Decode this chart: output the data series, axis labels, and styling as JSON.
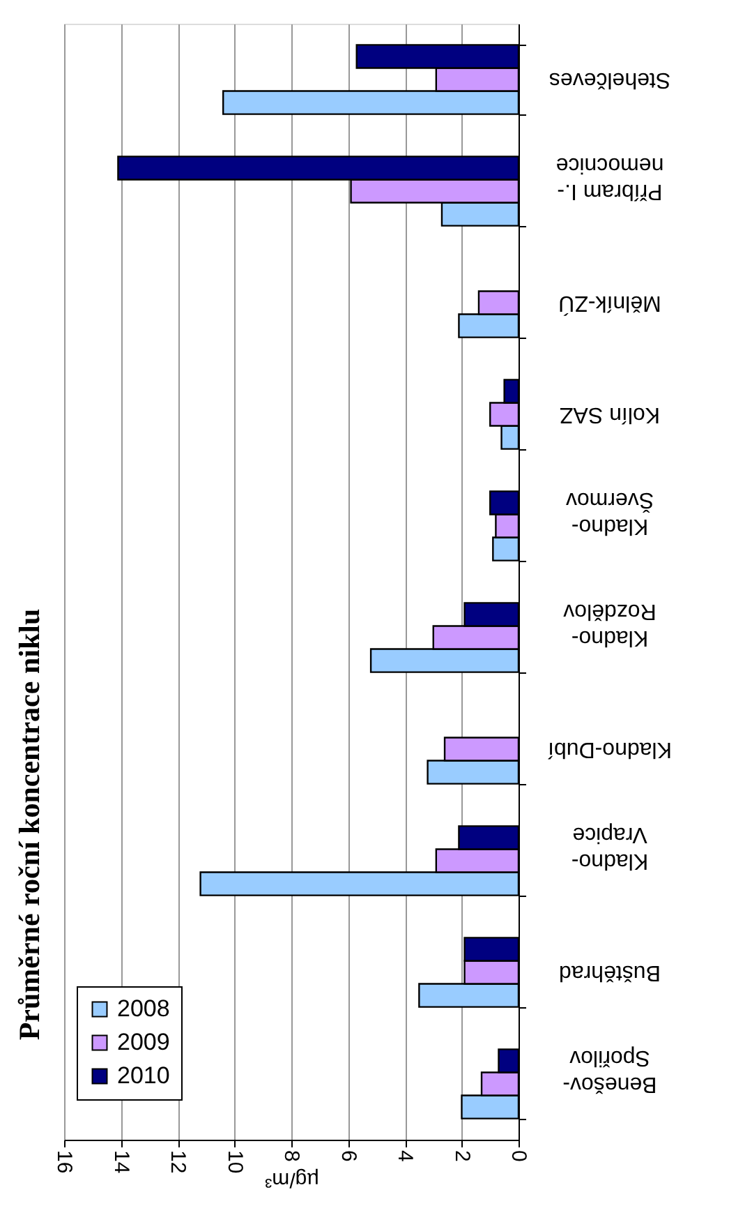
{
  "chart_data": {
    "type": "bar",
    "orientation": "horizontal",
    "title": "Průměrné roční koncentrace niklu",
    "xlabel": "µg/m³",
    "categories": [
      "Stehelčeves",
      "Příbram I.-\nnemocnice",
      "Mělník-ZÚ",
      "Kolín SAZ",
      "Kladno-\nŠvermov",
      "Kladno-\nRozdělov",
      "Kladno-Dubí",
      "Kladno-\nVrapice",
      "Buštěhrad",
      "Benešov-\nSpořilov"
    ],
    "series": [
      {
        "name": "2008",
        "color": "#99ccff",
        "values": [
          10.4,
          2.7,
          2.1,
          0.6,
          0.9,
          5.2,
          3.2,
          11.2,
          3.5,
          2.0
        ]
      },
      {
        "name": "2009",
        "color": "#cc99ff",
        "values": [
          2.9,
          5.9,
          1.4,
          1.0,
          0.8,
          3.0,
          2.6,
          2.9,
          1.9,
          1.3
        ]
      },
      {
        "name": "2010",
        "color": "#000080",
        "values": [
          5.7,
          14.1,
          null,
          0.5,
          1.0,
          1.9,
          null,
          2.1,
          1.9,
          0.7
        ]
      }
    ],
    "xlim": [
      16,
      0
    ],
    "xticks": [
      16,
      14,
      12,
      10,
      8,
      6,
      4,
      2,
      0
    ],
    "grid": "x",
    "legend": "bottom left"
  }
}
